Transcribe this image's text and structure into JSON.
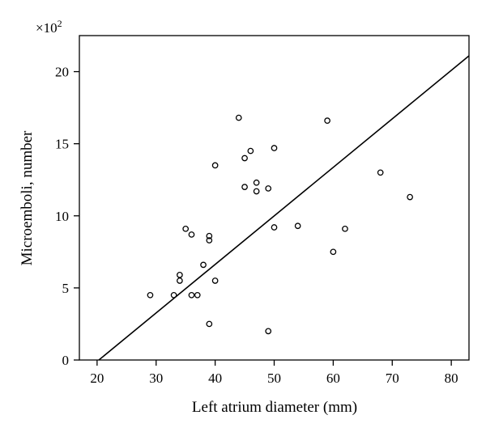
{
  "chart_data": {
    "type": "scatter",
    "xlabel": "Left atrium diameter (mm)",
    "ylabel": "Microemboli, number",
    "y_multiplier": "×10",
    "y_multiplier_exp": "2",
    "xlim": [
      17,
      83
    ],
    "ylim": [
      0,
      22.5
    ],
    "xticks": [
      20,
      30,
      40,
      50,
      60,
      70,
      80
    ],
    "yticks": [
      0,
      5,
      10,
      15,
      20
    ],
    "grid": false,
    "series": [
      {
        "points": [
          {
            "x": 29,
            "y": 4.5
          },
          {
            "x": 33,
            "y": 4.5
          },
          {
            "x": 34,
            "y": 5.5
          },
          {
            "x": 34,
            "y": 5.9
          },
          {
            "x": 35,
            "y": 9.1
          },
          {
            "x": 36,
            "y": 8.7
          },
          {
            "x": 36,
            "y": 4.5
          },
          {
            "x": 37,
            "y": 4.5
          },
          {
            "x": 38,
            "y": 6.6
          },
          {
            "x": 39,
            "y": 8.6
          },
          {
            "x": 39,
            "y": 8.3
          },
          {
            "x": 39,
            "y": 2.5
          },
          {
            "x": 40,
            "y": 13.5
          },
          {
            "x": 40,
            "y": 5.5
          },
          {
            "x": 44,
            "y": 16.8
          },
          {
            "x": 45,
            "y": 14.0
          },
          {
            "x": 45,
            "y": 12.0
          },
          {
            "x": 46,
            "y": 14.5
          },
          {
            "x": 47,
            "y": 12.3
          },
          {
            "x": 47,
            "y": 11.7
          },
          {
            "x": 49,
            "y": 11.9
          },
          {
            "x": 49,
            "y": 2.0
          },
          {
            "x": 50,
            "y": 14.7
          },
          {
            "x": 50,
            "y": 9.2
          },
          {
            "x": 54,
            "y": 9.3
          },
          {
            "x": 59,
            "y": 16.6
          },
          {
            "x": 60,
            "y": 7.5
          },
          {
            "x": 62,
            "y": 9.1
          },
          {
            "x": 68,
            "y": 13.0
          },
          {
            "x": 73,
            "y": 11.3
          }
        ]
      }
    ],
    "fit_line": {
      "x": [
        20.3,
        83
      ],
      "y": [
        0,
        21.1
      ]
    }
  }
}
